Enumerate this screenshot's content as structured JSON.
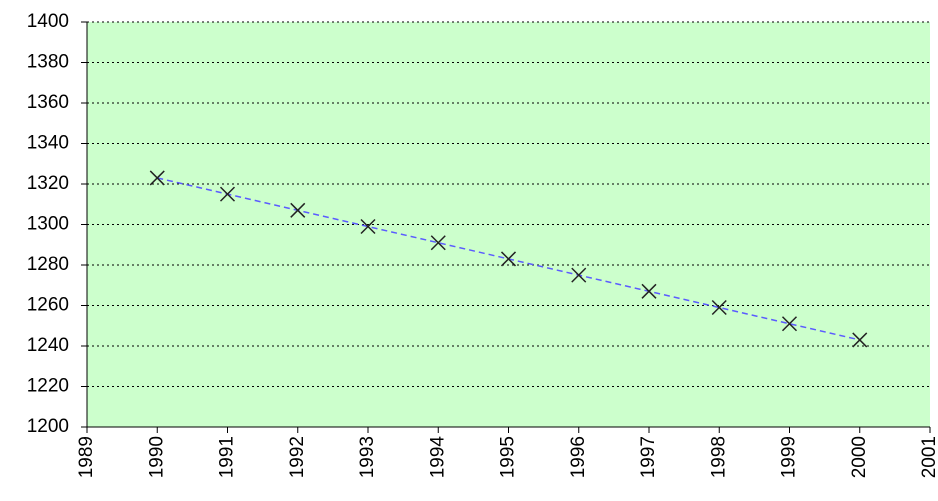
{
  "chart_data": {
    "type": "scatter",
    "x": [
      1990,
      1991,
      1992,
      1993,
      1994,
      1995,
      1996,
      1997,
      1998,
      1999,
      2000
    ],
    "values": [
      1323,
      1315,
      1307,
      1299,
      1291,
      1283,
      1275,
      1267,
      1259,
      1251,
      1243
    ],
    "color": "#5b5bff",
    "marker_color": "#222222",
    "plot_background": "#ccffcc",
    "xlim": [
      1989,
      2001
    ],
    "xticks": [
      1989,
      1990,
      1991,
      1992,
      1993,
      1994,
      1995,
      1996,
      1997,
      1998,
      1999,
      2000,
      2001
    ],
    "ylim": [
      1200,
      1400
    ],
    "yticks": [
      1200,
      1220,
      1240,
      1260,
      1280,
      1300,
      1320,
      1340,
      1360,
      1380,
      1400
    ],
    "grid": true
  }
}
